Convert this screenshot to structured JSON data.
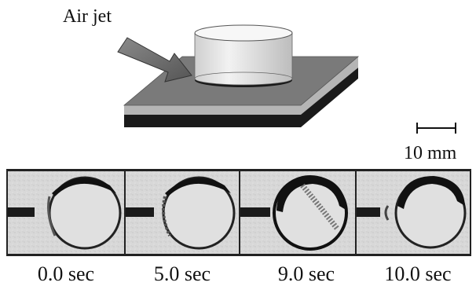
{
  "schematic": {
    "air_jet_label": "Air jet"
  },
  "scale_bar": {
    "label": "10 mm"
  },
  "frames": [
    {
      "time_label": "0.0 sec"
    },
    {
      "time_label": "5.0 sec"
    },
    {
      "time_label": "9.0 sec"
    },
    {
      "time_label": "10.0 sec"
    }
  ]
}
